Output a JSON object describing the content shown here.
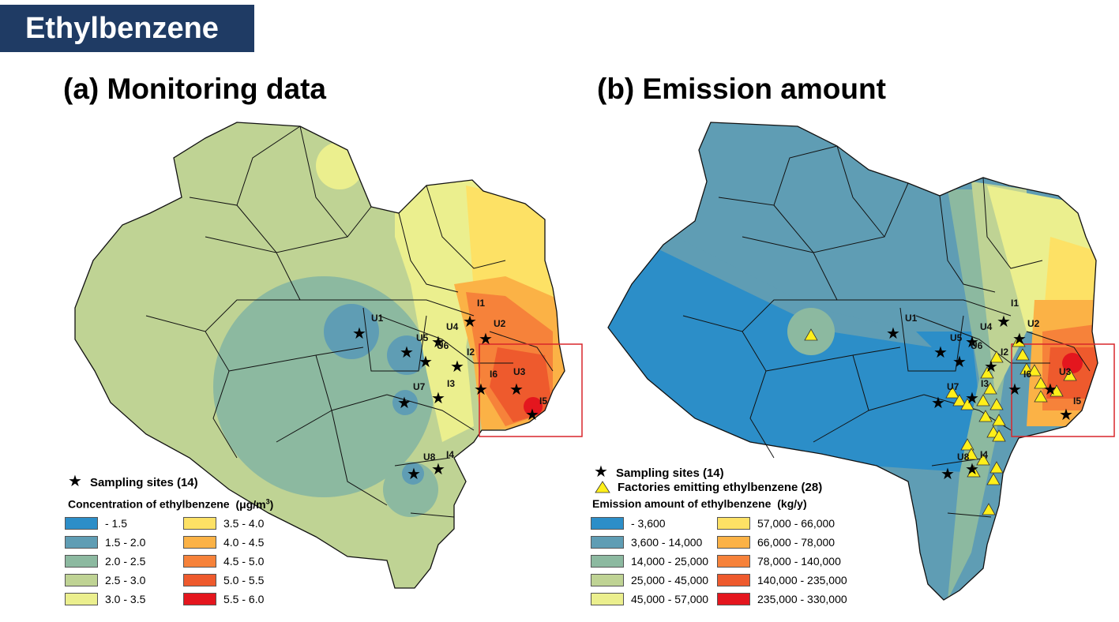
{
  "banner": "Ethylbenzene",
  "panels": [
    {
      "title": "(a) Monitoring data",
      "legend": {
        "sites": "Sampling sites (14)",
        "title_text": "Concentration of ethylbenzene",
        "unit_prefix": "(μg/m",
        "unit_sup": "3",
        "unit_suffix": ")",
        "bins": [
          {
            "label": " - 1.5",
            "color": "#2c8ec8"
          },
          {
            "label": "1.5 - 2.0",
            "color": "#5f9db4"
          },
          {
            "label": "2.0 - 2.5",
            "color": "#8cb9a0"
          },
          {
            "label": "2.5 - 3.0",
            "color": "#bfd394"
          },
          {
            "label": "3.0 - 3.5",
            "color": "#ebef8e"
          },
          {
            "label": "3.5 - 4.0",
            "color": "#fde165"
          },
          {
            "label": "4.0 - 4.5",
            "color": "#fbb246"
          },
          {
            "label": "4.5 - 5.0",
            "color": "#f6823a"
          },
          {
            "label": "5.0 - 5.5",
            "color": "#ee5a2d"
          },
          {
            "label": "5.5 - 6.0",
            "color": "#e4161e"
          }
        ]
      }
    },
    {
      "title": "(b) Emission amount",
      "legend": {
        "sites": "Sampling sites (14)",
        "factories": "Factories emitting ethylbenzene (28)",
        "title_text": "Emission amount of ethylbenzene",
        "unit": "(kg/y)",
        "bins": [
          {
            "label": " - 3,600",
            "color": "#2c8ec8"
          },
          {
            "label": "3,600 - 14,000",
            "color": "#5f9db4"
          },
          {
            "label": "14,000 - 25,000",
            "color": "#8cb9a0"
          },
          {
            "label": "25,000 - 45,000",
            "color": "#bfd394"
          },
          {
            "label": "45,000 - 57,000",
            "color": "#ebef8e"
          },
          {
            "label": "57,000 - 66,000",
            "color": "#fde165"
          },
          {
            "label": "66,000 - 78,000",
            "color": "#fbb246"
          },
          {
            "label": "78,000 - 140,000",
            "color": "#f6823a"
          },
          {
            "label": "140,000 - 235,000",
            "color": "#ee5a2d"
          },
          {
            "label": "235,000 - 330,000",
            "color": "#e4161e"
          }
        ]
      }
    }
  ],
  "site_labels": [
    "U1",
    "U2",
    "U3",
    "U4",
    "U5",
    "U6",
    "U7",
    "U8",
    "I1",
    "I2",
    "I3",
    "I4",
    "I5",
    "I6"
  ],
  "highlight_box_color": "#d9262b"
}
